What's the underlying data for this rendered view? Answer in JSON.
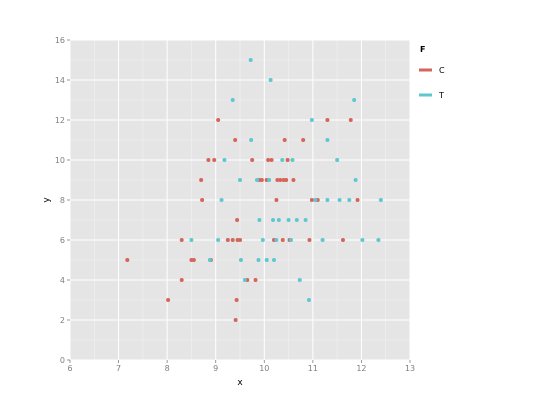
{
  "chart_data": {
    "type": "scatter",
    "title": "",
    "xlabel": "x",
    "ylabel": "y",
    "xlim": [
      6,
      13
    ],
    "ylim": [
      0,
      16
    ],
    "xticks": [
      6,
      7,
      8,
      9,
      10,
      11,
      12,
      13
    ],
    "yticks": [
      0,
      2,
      4,
      6,
      8,
      10,
      12,
      14,
      16
    ],
    "grid": true,
    "legend": {
      "title": "F",
      "placement": "right"
    },
    "series": [
      {
        "name": "C",
        "color": "#d5645a",
        "points": [
          [
            7.18,
            5
          ],
          [
            8.02,
            3
          ],
          [
            8.3,
            4
          ],
          [
            8.3,
            6
          ],
          [
            8.5,
            5
          ],
          [
            8.55,
            5
          ],
          [
            8.7,
            9
          ],
          [
            8.72,
            8
          ],
          [
            8.85,
            10
          ],
          [
            8.9,
            5
          ],
          [
            8.97,
            10
          ],
          [
            9.05,
            12
          ],
          [
            9.25,
            6
          ],
          [
            9.35,
            6
          ],
          [
            9.4,
            11
          ],
          [
            9.41,
            2
          ],
          [
            9.43,
            3
          ],
          [
            9.44,
            7
          ],
          [
            9.45,
            6
          ],
          [
            9.5,
            6
          ],
          [
            9.65,
            4
          ],
          [
            9.75,
            10
          ],
          [
            9.82,
            4
          ],
          [
            9.9,
            9
          ],
          [
            9.95,
            9
          ],
          [
            10.05,
            9
          ],
          [
            10.08,
            10
          ],
          [
            10.15,
            10
          ],
          [
            10.2,
            6
          ],
          [
            10.25,
            8
          ],
          [
            10.27,
            9
          ],
          [
            10.33,
            9
          ],
          [
            10.38,
            6
          ],
          [
            10.4,
            9
          ],
          [
            10.42,
            11
          ],
          [
            10.45,
            9
          ],
          [
            10.48,
            10
          ],
          [
            10.52,
            6
          ],
          [
            10.6,
            9
          ],
          [
            10.8,
            11
          ],
          [
            10.93,
            6
          ],
          [
            10.98,
            8
          ],
          [
            11.1,
            8
          ],
          [
            11.3,
            12
          ],
          [
            11.62,
            6
          ],
          [
            11.78,
            12
          ],
          [
            11.92,
            8
          ]
        ]
      },
      {
        "name": "T",
        "color": "#5dc8cf",
        "points": [
          [
            8.5,
            6
          ],
          [
            8.88,
            5
          ],
          [
            9.05,
            6
          ],
          [
            9.12,
            8
          ],
          [
            9.18,
            10
          ],
          [
            9.35,
            13
          ],
          [
            9.5,
            9
          ],
          [
            9.52,
            5
          ],
          [
            9.6,
            4
          ],
          [
            9.72,
            15
          ],
          [
            9.73,
            11
          ],
          [
            9.85,
            9
          ],
          [
            9.88,
            5
          ],
          [
            9.9,
            7
          ],
          [
            9.97,
            6
          ],
          [
            10.05,
            5
          ],
          [
            10.1,
            9
          ],
          [
            10.13,
            14
          ],
          [
            10.18,
            7
          ],
          [
            10.2,
            5
          ],
          [
            10.25,
            6
          ],
          [
            10.3,
            7
          ],
          [
            10.37,
            10
          ],
          [
            10.5,
            7
          ],
          [
            10.55,
            6
          ],
          [
            10.58,
            10
          ],
          [
            10.67,
            7
          ],
          [
            10.73,
            4
          ],
          [
            10.85,
            7
          ],
          [
            10.92,
            3
          ],
          [
            10.98,
            12
          ],
          [
            11.05,
            8
          ],
          [
            11.2,
            6
          ],
          [
            11.3,
            11
          ],
          [
            11.3,
            8
          ],
          [
            11.5,
            10
          ],
          [
            11.55,
            8
          ],
          [
            11.75,
            8
          ],
          [
            11.85,
            13
          ],
          [
            11.88,
            9
          ],
          [
            12.02,
            6
          ],
          [
            12.35,
            6
          ],
          [
            12.4,
            8
          ]
        ]
      }
    ]
  }
}
